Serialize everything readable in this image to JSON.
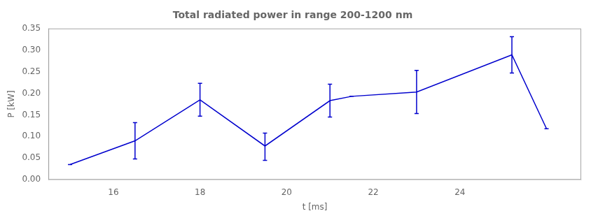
{
  "chart_data": {
    "type": "line",
    "title": "Total radiated power in range 200-1200 nm",
    "xlabel": "t [ms]",
    "ylabel": "P [kW]",
    "x": [
      15.0,
      16.5,
      18.0,
      19.5,
      21.0,
      21.5,
      23.0,
      25.2,
      26.0
    ],
    "values": [
      0.035,
      0.09,
      0.185,
      0.078,
      0.183,
      0.193,
      0.203,
      0.289,
      0.118
    ],
    "error_low": [
      0.0,
      0.042,
      0.038,
      0.033,
      0.038,
      0.0,
      0.05,
      0.042,
      0.0
    ],
    "error_high": [
      0.0,
      0.042,
      0.038,
      0.03,
      0.038,
      0.0,
      0.05,
      0.042,
      0.0
    ],
    "color": "#0000cd",
    "xlim": [
      14.5,
      26.8
    ],
    "xticks": [
      16,
      18,
      20,
      22,
      24
    ],
    "ylim": [
      0.0,
      0.35
    ],
    "yticks": [
      {
        "value": 0.0,
        "label": "0.00"
      },
      {
        "value": 0.05,
        "label": "0.05"
      },
      {
        "value": 0.1,
        "label": "0.10"
      },
      {
        "value": 0.15,
        "label": "0.15"
      },
      {
        "value": 0.2,
        "label": "0.20"
      },
      {
        "value": 0.25,
        "label": "0.25"
      },
      {
        "value": 0.3,
        "label": "0.30"
      },
      {
        "value": 0.35,
        "label": "0.35"
      }
    ],
    "grid": false
  }
}
